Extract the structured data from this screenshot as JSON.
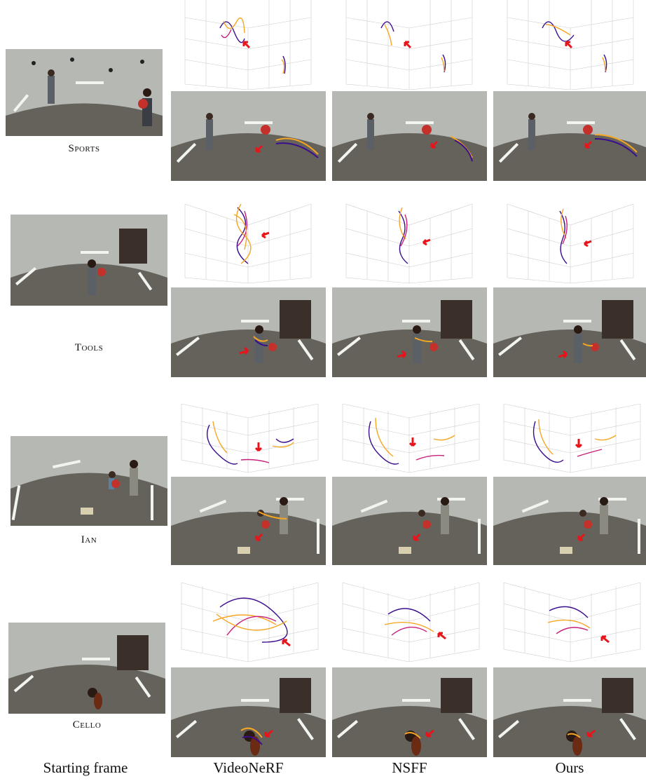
{
  "columns": [
    "Starting frame",
    "VideoNeRF",
    "NSFF",
    "Ours"
  ],
  "rows": [
    {
      "label": "Sports",
      "scene": "sports"
    },
    {
      "label": "Tools",
      "scene": "tools"
    },
    {
      "label": "Ian",
      "scene": "ian"
    },
    {
      "label": "Cello",
      "scene": "cello"
    }
  ],
  "colors": {
    "trajectory_dark": "#3a0e8c",
    "trajectory_mid": "#c6207a",
    "trajectory_light": "#f6a623",
    "arrow": "#e8141a",
    "wall": "#b4b7b1",
    "floor": "#625f59",
    "light_strip": "#f4f6f2"
  }
}
